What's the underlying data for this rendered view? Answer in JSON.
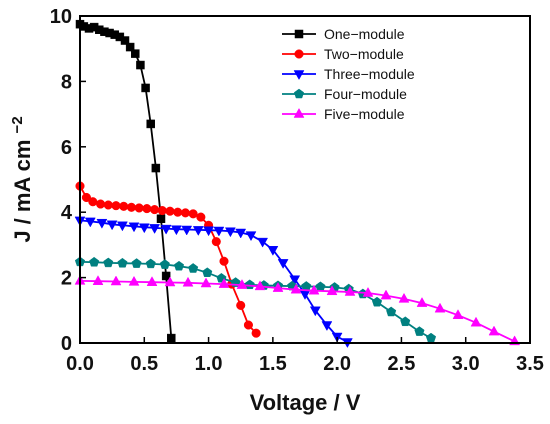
{
  "chart_data": {
    "type": "line",
    "xlabel": "Voltage / V",
    "ylabel": "J / mA cm",
    "ylabel_sup": "−2",
    "xlim": [
      0,
      3.5
    ],
    "ylim": [
      0,
      10
    ],
    "xticks": [
      0.0,
      0.5,
      1.0,
      1.5,
      2.0,
      2.5,
      3.0,
      3.5
    ],
    "xtick_labels": [
      "0.0",
      "0.5",
      "1.0",
      "1.5",
      "2.0",
      "2.5",
      "3.0",
      "3.5"
    ],
    "yticks": [
      0,
      2,
      4,
      6,
      8,
      10
    ],
    "ytick_labels": [
      "0",
      "2",
      "4",
      "6",
      "8",
      "10"
    ],
    "grid": false,
    "legend_position": "top-right",
    "series": [
      {
        "name": "One−module",
        "color": "#000000",
        "marker": "square",
        "x": [
          0.0,
          0.03,
          0.07,
          0.11,
          0.15,
          0.19,
          0.23,
          0.27,
          0.31,
          0.35,
          0.39,
          0.43,
          0.47,
          0.51,
          0.55,
          0.59,
          0.63,
          0.67,
          0.71
        ],
        "y": [
          9.75,
          9.68,
          9.62,
          9.66,
          9.58,
          9.52,
          9.48,
          9.43,
          9.36,
          9.25,
          9.05,
          8.85,
          8.5,
          7.8,
          6.7,
          5.35,
          3.8,
          2.05,
          0.15
        ]
      },
      {
        "name": "Two−module",
        "color": "#ff0000",
        "marker": "circle",
        "x": [
          0.0,
          0.05,
          0.1,
          0.16,
          0.22,
          0.28,
          0.34,
          0.4,
          0.46,
          0.52,
          0.58,
          0.64,
          0.7,
          0.76,
          0.82,
          0.88,
          0.94,
          1.0,
          1.06,
          1.12,
          1.18,
          1.25,
          1.31,
          1.37
        ],
        "y": [
          4.8,
          4.45,
          4.32,
          4.25,
          4.22,
          4.2,
          4.18,
          4.15,
          4.13,
          4.11,
          4.08,
          4.05,
          4.03,
          4.0,
          3.98,
          3.95,
          3.85,
          3.6,
          3.1,
          2.5,
          1.8,
          1.15,
          0.55,
          0.3
        ]
      },
      {
        "name": "Three−module",
        "color": "#0000ff",
        "marker": "triangle-down",
        "x": [
          0.0,
          0.08,
          0.17,
          0.25,
          0.33,
          0.42,
          0.5,
          0.58,
          0.67,
          0.75,
          0.83,
          0.92,
          1.0,
          1.08,
          1.17,
          1.25,
          1.33,
          1.42,
          1.5,
          1.58,
          1.67,
          1.75,
          1.83,
          1.92,
          2.0,
          2.08
        ],
        "y": [
          3.75,
          3.72,
          3.68,
          3.63,
          3.6,
          3.57,
          3.54,
          3.52,
          3.5,
          3.48,
          3.47,
          3.46,
          3.45,
          3.44,
          3.42,
          3.38,
          3.3,
          3.1,
          2.85,
          2.45,
          1.95,
          1.5,
          1.0,
          0.55,
          0.2,
          0.03
        ]
      },
      {
        "name": "Four−module",
        "color": "#008080",
        "marker": "pentagon",
        "x": [
          0.0,
          0.11,
          0.22,
          0.33,
          0.44,
          0.55,
          0.66,
          0.77,
          0.88,
          0.99,
          1.1,
          1.21,
          1.32,
          1.43,
          1.54,
          1.65,
          1.76,
          1.87,
          1.98,
          2.09,
          2.2,
          2.31,
          2.42,
          2.53,
          2.64,
          2.73
        ],
        "y": [
          2.48,
          2.47,
          2.45,
          2.44,
          2.43,
          2.42,
          2.4,
          2.35,
          2.28,
          2.15,
          1.98,
          1.85,
          1.78,
          1.76,
          1.75,
          1.74,
          1.73,
          1.72,
          1.7,
          1.65,
          1.5,
          1.25,
          0.95,
          0.65,
          0.35,
          0.15
        ]
      },
      {
        "name": "Five−module",
        "color": "#ff00ff",
        "marker": "triangle-up",
        "x": [
          0.0,
          0.14,
          0.28,
          0.42,
          0.56,
          0.7,
          0.84,
          0.98,
          1.12,
          1.26,
          1.4,
          1.54,
          1.68,
          1.82,
          1.96,
          2.1,
          2.24,
          2.38,
          2.52,
          2.66,
          2.8,
          2.94,
          3.08,
          3.22,
          3.38
        ],
        "y": [
          1.9,
          1.89,
          1.88,
          1.87,
          1.86,
          1.85,
          1.84,
          1.82,
          1.8,
          1.77,
          1.73,
          1.68,
          1.63,
          1.6,
          1.58,
          1.56,
          1.53,
          1.45,
          1.35,
          1.22,
          1.05,
          0.85,
          0.62,
          0.35,
          0.05
        ]
      }
    ]
  }
}
